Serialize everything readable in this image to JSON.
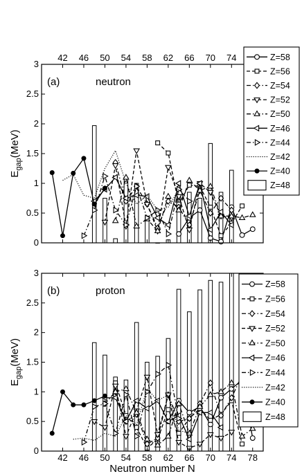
{
  "chart_data": [
    {
      "type": "bar",
      "panel_label": "(a)",
      "annotation": "neutron",
      "xlabel": "",
      "ylabel": "E",
      "ylabel_sub": "gap",
      "ylabel_unit": "(MeV)",
      "xlim": [
        38,
        80
      ],
      "ylim": [
        0,
        3
      ],
      "x_axis_position": "top",
      "xticks": [
        "42",
        "46",
        "50",
        "54",
        "58",
        "62",
        "66",
        "70",
        "74"
      ],
      "yticks": [
        "0",
        "0.5",
        "1",
        "1.5",
        "2",
        "2.5",
        "3"
      ],
      "grid": false,
      "legend_position": "right",
      "bars": {
        "name": "Z=48",
        "x": [
          48,
          50,
          52,
          54,
          56,
          58,
          60,
          62,
          64,
          66,
          68,
          70,
          72,
          74
        ],
        "values": [
          1.97,
          0.75,
          0.07,
          1.1,
          1.0,
          0.45,
          0.0,
          0.05,
          0.8,
          0.85,
          0.75,
          1.67,
          0.85,
          1.22
        ]
      },
      "series": [
        {
          "name": "Z=58",
          "marker": "circle",
          "dash": "solid",
          "x": [
            64,
            66,
            68,
            70,
            72,
            74,
            76,
            78
          ],
          "values": [
            0.15,
            0.42,
            0.55,
            0.08,
            0.02,
            0.6,
            0.13,
            0.23
          ]
        },
        {
          "name": "Z=56",
          "marker": "square",
          "dash": "dashed",
          "x": [
            60,
            62,
            64,
            66,
            68,
            70,
            72,
            74,
            76
          ],
          "values": [
            1.68,
            1.51,
            0.65,
            0.97,
            0.95,
            0.6,
            0.12,
            0.33,
            0.62
          ]
        },
        {
          "name": "Z=54",
          "marker": "diamond",
          "dash": "dashdot",
          "x": [
            52,
            54,
            56,
            58,
            60,
            62,
            64,
            66,
            68,
            70,
            72,
            74
          ],
          "values": [
            1.35,
            0.7,
            0.95,
            0.65,
            0.25,
            0.7,
            0.6,
            0.3,
            0.88,
            0.5,
            0.75,
            0.55
          ]
        },
        {
          "name": "Z=52",
          "marker": "triangle-down",
          "dash": "dashed",
          "x": [
            50,
            52,
            54,
            56,
            58,
            60,
            62,
            64,
            66,
            68,
            70,
            72,
            74
          ],
          "values": [
            0.35,
            1.3,
            0.28,
            1.55,
            0.65,
            0.2,
            1.27,
            0.78,
            0.22,
            1.0,
            0.85,
            0.45,
            0.42
          ]
        },
        {
          "name": "Z=50",
          "marker": "triangle-up",
          "dash": "dashdot",
          "x": [
            52,
            54,
            56,
            58,
            60,
            62,
            64,
            66,
            68,
            70,
            72,
            74,
            76,
            78
          ],
          "values": [
            0.37,
            1.1,
            0.28,
            0.4,
            0.2,
            0.78,
            0.55,
            1.05,
            0.88,
            0.95,
            0.45,
            0.45,
            0.42,
            0.47
          ]
        },
        {
          "name": "Z=46",
          "marker": "triangle-left",
          "dash": "solid",
          "x": [
            48,
            50,
            52,
            54,
            56,
            58,
            60,
            62,
            64,
            66,
            68,
            70,
            72,
            74
          ],
          "values": [
            0.7,
            0.9,
            1.1,
            0.75,
            0.8,
            0.78,
            0.42,
            0.3,
            1.0,
            0.45,
            1.0,
            0.22,
            0.52,
            0.3
          ]
        },
        {
          "name": "Z=44",
          "marker": "triangle-right",
          "dash": "dashdot",
          "x": [
            46,
            48,
            50,
            52,
            54,
            56,
            58,
            60,
            62,
            64,
            66
          ],
          "values": [
            0.12,
            0.55,
            1.12,
            0.55,
            0.3,
            0.95,
            0.42,
            0.55,
            0.15,
            0.9,
            0.7
          ]
        },
        {
          "name": "Z=42",
          "marker": "none",
          "dash": "dotted",
          "x": [
            42,
            44,
            46,
            48,
            50,
            52,
            54,
            56,
            58,
            60,
            62,
            64
          ],
          "values": [
            1.05,
            1.15,
            0.8,
            0.75,
            1.25,
            1.55,
            1.0,
            0.65,
            0.8,
            0.55,
            0.6,
            0.9
          ]
        },
        {
          "name": "Z=40",
          "marker": "filled-circle",
          "dash": "solid",
          "x": [
            40,
            42,
            44,
            46,
            48,
            50
          ],
          "values": [
            1.18,
            0.12,
            1.17,
            1.42,
            0.65,
            0.92
          ]
        }
      ]
    },
    {
      "type": "bar",
      "panel_label": "(b)",
      "annotation": "proton",
      "xlabel": "Neutron number N",
      "ylabel": "E",
      "ylabel_sub": "gap",
      "ylabel_unit": "(MeV)",
      "xlim": [
        38,
        80
      ],
      "ylim": [
        0,
        3
      ],
      "x_axis_position": "bottom",
      "xticks": [
        "42",
        "46",
        "50",
        "54",
        "58",
        "62",
        "66",
        "70",
        "74",
        "78"
      ],
      "yticks": [
        "0",
        "0.5",
        "1",
        "1.5",
        "2",
        "2.5",
        "3"
      ],
      "grid": false,
      "legend_position": "right",
      "bars": {
        "name": "Z=48",
        "x": [
          48,
          50,
          52,
          54,
          56,
          58,
          60,
          62,
          64,
          66,
          68,
          70,
          72,
          74
        ],
        "values": [
          1.83,
          1.62,
          1.25,
          1.2,
          2.17,
          1.5,
          1.6,
          1.9,
          2.73,
          2.35,
          2.72,
          2.88,
          2.85,
          3.0
        ]
      },
      "series": [
        {
          "name": "Z=58",
          "marker": "circle",
          "dash": "solid",
          "x": [
            62,
            64,
            66,
            68,
            70,
            72,
            74,
            76,
            78
          ],
          "values": [
            0.5,
            0.85,
            0.65,
            0.75,
            0.45,
            0.9,
            1.05,
            1.2,
            0.22
          ]
        },
        {
          "name": "Z=56",
          "marker": "square",
          "dash": "dashed",
          "x": [
            52,
            54,
            56,
            58,
            60,
            62,
            64,
            66,
            68,
            70,
            72,
            74,
            76
          ],
          "values": [
            1.15,
            0.6,
            0.4,
            0.05,
            0.2,
            0.7,
            0.3,
            0.55,
            0.72,
            0.52,
            0.62,
            0.85,
            0.12
          ]
        },
        {
          "name": "Z=54",
          "marker": "diamond",
          "dash": "dashdot",
          "x": [
            50,
            52,
            54,
            56,
            58,
            60,
            62,
            64,
            66,
            68,
            70,
            72,
            74,
            76
          ],
          "values": [
            0.8,
            1.0,
            0.5,
            0.62,
            0.12,
            0.22,
            0.95,
            0.5,
            0.55,
            0.8,
            1.15,
            0.6,
            0.9,
            1.28
          ]
        },
        {
          "name": "Z=52",
          "marker": "triangle-down",
          "dash": "dashed",
          "x": [
            48,
            50,
            52,
            54,
            56,
            58,
            60,
            62,
            64,
            66,
            68,
            70,
            72,
            74
          ],
          "values": [
            0.5,
            0.4,
            1.1,
            0.25,
            0.68,
            1.25,
            0.28,
            0.95,
            0.15,
            0.05,
            0.12,
            0.28,
            0.22,
            0.32
          ]
        },
        {
          "name": "Z=50",
          "marker": "triangle-up",
          "dash": "dashdot",
          "x": [
            52,
            54,
            56,
            58,
            60,
            62,
            64,
            66,
            68,
            70,
            72,
            74,
            76,
            78
          ],
          "values": [
            1.0,
            1.05,
            0.65,
            0.2,
            0.1,
            0.25,
            0.8,
            0.3,
            0.75,
            0.95,
            1.0,
            1.15,
            0.25,
            0.38
          ]
        },
        {
          "name": "Z=46",
          "marker": "triangle-left",
          "dash": "solid",
          "x": [
            50,
            52,
            54,
            56,
            58,
            60,
            62,
            64,
            66,
            68,
            70,
            72
          ],
          "values": [
            0.9,
            0.9,
            0.5,
            0.85,
            0.72,
            0.85,
            0.5,
            0.6,
            0.2,
            0.65,
            0.65,
            0.4
          ]
        },
        {
          "name": "Z=44",
          "marker": "triangle-right",
          "dash": "dashdot",
          "x": [
            46,
            48,
            50,
            52,
            54,
            56,
            58,
            60,
            62,
            64
          ],
          "values": [
            0.15,
            0.75,
            0.8,
            0.3,
            0.95,
            0.25,
            1.0,
            1.3,
            1.45,
            0.55
          ]
        },
        {
          "name": "Z=42",
          "marker": "none",
          "dash": "dotted",
          "x": [
            44,
            46,
            48,
            50,
            52,
            54,
            56,
            58,
            60,
            62,
            64,
            66
          ],
          "values": [
            0.2,
            0.22,
            0.18,
            0.3,
            0.25,
            0.6,
            0.45,
            1.05,
            0.85,
            0.95,
            0.35,
            0.3
          ]
        },
        {
          "name": "Z=40",
          "marker": "filled-circle",
          "dash": "solid",
          "x": [
            40,
            42,
            44,
            46,
            48,
            50
          ],
          "values": [
            0.3,
            1.0,
            0.78,
            0.78,
            0.85,
            0.93
          ]
        }
      ]
    }
  ]
}
